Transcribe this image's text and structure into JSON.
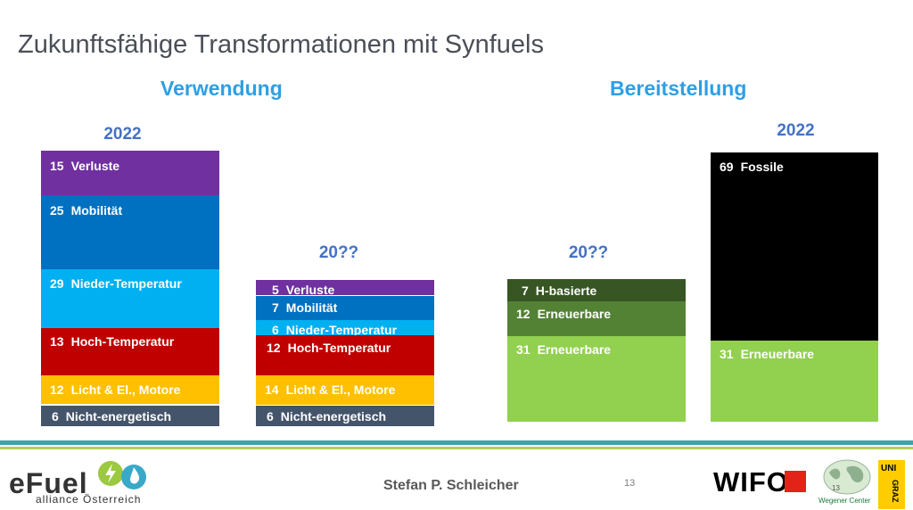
{
  "title": "Zukunftsfähige Transformationen mit Synfuels",
  "headings": {
    "left": "Verwendung",
    "right": "Bereitstellung"
  },
  "years": {
    "a": "2022",
    "b": "20??",
    "c": "20??",
    "d": "2022"
  },
  "bars": {
    "verwendung_2022": [
      {
        "value": "15",
        "label": "Verluste",
        "color": "#7030a0"
      },
      {
        "value": "25",
        "label": "Mobilität",
        "color": "#0070c0"
      },
      {
        "value": "29",
        "label": "Nieder-Temperatur",
        "color": "#00b0f0"
      },
      {
        "value": "13",
        "label": "Hoch-Temperatur",
        "color": "#c00000"
      },
      {
        "value": "12",
        "label": "Licht & El., Motore",
        "color": "#ffc000"
      },
      {
        "value": "6",
        "label": "Nicht-energetisch",
        "color": "#44546a"
      }
    ],
    "verwendung_future": [
      {
        "value": "5",
        "label": "Verluste",
        "color": "#7030a0"
      },
      {
        "value": "7",
        "label": "Mobilität",
        "color": "#0070c0"
      },
      {
        "value": "6",
        "label": "Nieder-Temperatur",
        "color": "#00b0f0"
      },
      {
        "value": "12",
        "label": "Hoch-Temperatur",
        "color": "#c00000"
      },
      {
        "value": "14",
        "label": "Licht & El., Motore",
        "color": "#ffc000"
      },
      {
        "value": "6",
        "label": "Nicht-energetisch",
        "color": "#44546a"
      }
    ],
    "bereitstellung_future": [
      {
        "value": "7",
        "label": "H-basierte",
        "color": "#375623"
      },
      {
        "value": "12",
        "label": "Erneuerbare",
        "color": "#548235"
      },
      {
        "value": "31",
        "label": "Erneuerbare",
        "color": "#92d050"
      }
    ],
    "bereitstellung_2022": [
      {
        "value": "69",
        "label": "Fossile",
        "color": "#000000"
      },
      {
        "value": "31",
        "label": "Erneuerbare",
        "color": "#92d050"
      }
    ]
  },
  "footer": {
    "author": "Stefan P. Schleicher",
    "page": "13",
    "efuel_logo": "eFuel",
    "efuel_sub": "alliance Österreich",
    "wifo_logo": "WIFO",
    "wegener_logo": "Wegener Center",
    "uni_logo": "UNI GRAZ"
  }
}
